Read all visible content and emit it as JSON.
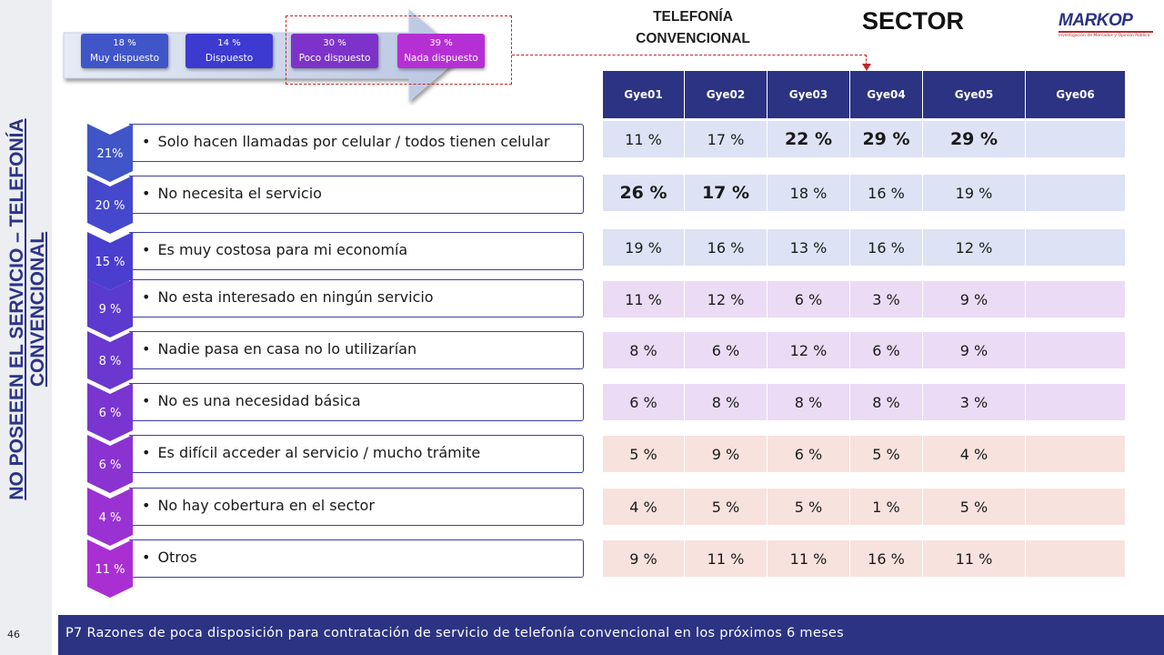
{
  "side_title": "NO POSEEEN EL SERVICIO – TELEFONÍA CONVENCIONAL",
  "page_number": "46",
  "footer_text": "P7 Razones de poca disposición para contratación de servicio de telefonía convencional en los próximos 6 meses",
  "legend": [
    {
      "pct": "18 %",
      "label": "Muy dispuesto",
      "color": "#3f55c8"
    },
    {
      "pct": "14 %",
      "label": "Dispuesto",
      "color": "#3c3ad0"
    },
    {
      "pct": "30 %",
      "label": "Poco dispuesto",
      "color": "#7d33c9"
    },
    {
      "pct": "39 %",
      "label": "Nada dispuesto",
      "color": "#b62fd4"
    }
  ],
  "telefonia_title": "TELEFONÍA CONVENCIONAL",
  "sector_title": "SECTOR",
  "logo": {
    "word": "MARKOP",
    "sub": "Investigación de Mercados y Opinión Pública"
  },
  "reasons": [
    {
      "pct": "21%",
      "text": "Solo hacen llamadas por celular / todos tienen celular",
      "chevron_color": "#3f55c8"
    },
    {
      "pct": "20 %",
      "text": "No necesita  el servicio",
      "chevron_color": "#4548cc"
    },
    {
      "pct": "15 %",
      "text": "Es muy costosa para mi economía",
      "chevron_color": "#4a3ecf"
    },
    {
      "pct": "9 %",
      "text": "No esta interesado  en ningún servicio",
      "chevron_color": "#5a3acf"
    },
    {
      "pct": "8 %",
      "text": "Nadie pasa en casa no lo utilizarían",
      "chevron_color": "#6a37cf"
    },
    {
      "pct": "6 %",
      "text": "No es una necesidad básica",
      "chevron_color": "#7a35d0"
    },
    {
      "pct": "6 %",
      "text": "Es difícil acceder al servicio / mucho trámite",
      "chevron_color": "#8a33d1"
    },
    {
      "pct": "4 %",
      "text": "No hay cobertura en el sector",
      "chevron_color": "#9a31d2"
    },
    {
      "pct": "11 %",
      "text": "Otros",
      "chevron_color": "#aa2fd3"
    }
  ],
  "table": {
    "headers": [
      "Gye01",
      "Gye02",
      "Gye03",
      "Gye04",
      "Gye05",
      "Gye06"
    ],
    "rows": [
      {
        "bg": "#dde3f4",
        "cells": [
          "11 %",
          "17 %",
          "22 %",
          "29 %",
          "29 %",
          ""
        ],
        "bold": [
          2,
          3,
          4
        ]
      },
      {
        "bg": "#dde3f4",
        "cells": [
          "26 %",
          "17 %",
          "18 %",
          "16 %",
          "19 %",
          ""
        ],
        "bold": [
          0,
          1
        ]
      },
      {
        "bg": "#dde3f4",
        "cells": [
          "19 %",
          "16 %",
          "13 %",
          "16 %",
          "12 %",
          ""
        ],
        "bold": []
      },
      {
        "bg": "#ecdbf5",
        "cells": [
          "11 %",
          "12 %",
          "6 %",
          "3 %",
          "9 %",
          ""
        ],
        "bold": []
      },
      {
        "bg": "#ecdbf5",
        "cells": [
          "8 %",
          "6 %",
          "12 %",
          "6 %",
          "9 %",
          ""
        ],
        "bold": []
      },
      {
        "bg": "#ecdbf5",
        "cells": [
          "6 %",
          "8 %",
          "8 %",
          "8 %",
          "3 %",
          ""
        ],
        "bold": []
      },
      {
        "bg": "#f8e2de",
        "cells": [
          "5 %",
          "9 %",
          "6 %",
          "5 %",
          "4 %",
          ""
        ],
        "bold": []
      },
      {
        "bg": "#f8e2de",
        "cells": [
          "4 %",
          "5 %",
          "5 %",
          "1 %",
          "5 %",
          ""
        ],
        "bold": []
      },
      {
        "bg": "#f8e2de",
        "cells": [
          "9 %",
          "11 %",
          "11 %",
          "16 %",
          "11 %",
          ""
        ],
        "bold": []
      }
    ]
  }
}
